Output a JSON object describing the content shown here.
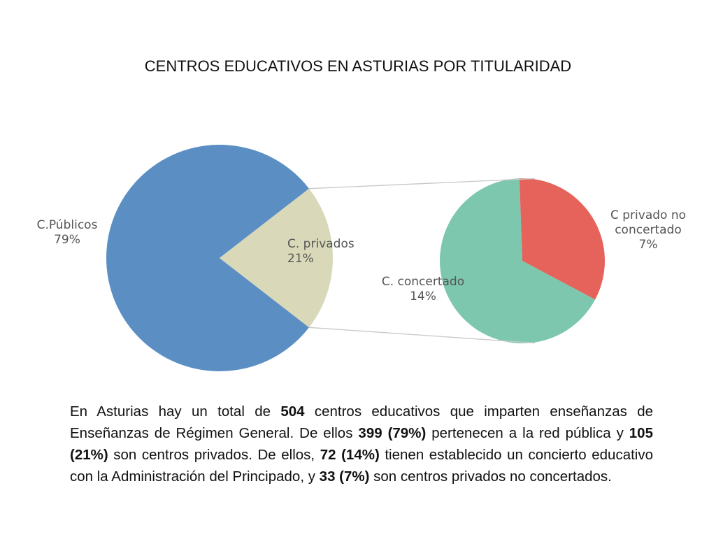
{
  "chart_data": {
    "type": "pie",
    "title": "CENTROS EDUCATIVOS EN ASTURIAS POR TITULARIDAD",
    "main_pie": {
      "slices": [
        {
          "label": "C.Públicos",
          "value_label": "79%",
          "value": 79,
          "color": "#5b8fc4"
        },
        {
          "label": "C. privados",
          "value_label": "21%",
          "value": 21,
          "color": "#d9d9b9"
        }
      ]
    },
    "secondary_pie": {
      "slices": [
        {
          "label": "C. concertado",
          "value_label": "14%",
          "value": 14,
          "color": "#7dc7ae"
        },
        {
          "label": "C privado no concertado",
          "label_lines": [
            "C privado no",
            "concertado"
          ],
          "value_label": "7%",
          "value": 7,
          "color": "#e5635a"
        }
      ]
    },
    "legend": "none"
  },
  "description": [
    {
      "text": "En Asturias hay un total de ",
      "bold": false
    },
    {
      "text": "504",
      "bold": true
    },
    {
      "text": " centros educativos que imparten enseñanzas de Enseñanzas de Régimen General. De ellos ",
      "bold": false
    },
    {
      "text": "399 (79%)",
      "bold": true
    },
    {
      "text": " pertenecen a la red pública y ",
      "bold": false
    },
    {
      "text": "105 (21%)",
      "bold": true
    },
    {
      "text": " son centros privados. De ellos, ",
      "bold": false
    },
    {
      "text": "72 (14%)",
      "bold": true
    },
    {
      "text": " tienen establecido un concierto educativo con la Administración del Principado, y ",
      "bold": false
    },
    {
      "text": "33 (7%)",
      "bold": true
    },
    {
      "text": " son centros privados no concertados.",
      "bold": false
    }
  ]
}
